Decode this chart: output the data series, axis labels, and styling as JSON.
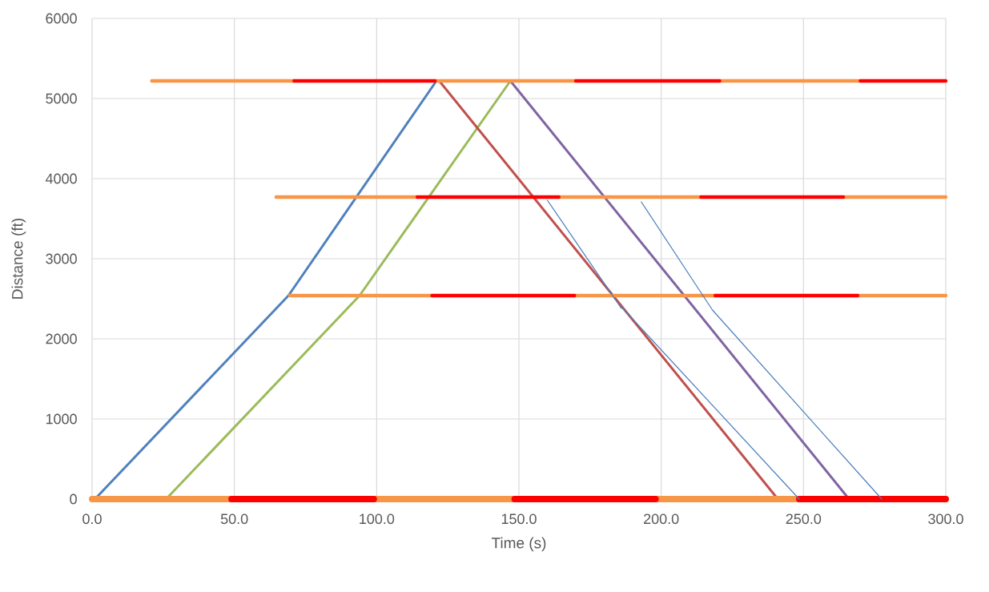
{
  "chart_data": {
    "type": "line",
    "xlabel": "Time (s)",
    "ylabel": "Distance (ft)",
    "xlim": [
      0,
      300
    ],
    "ylim": [
      0,
      6000
    ],
    "xticks": [
      {
        "value": 0,
        "label": "0.0"
      },
      {
        "value": 50,
        "label": "50.0"
      },
      {
        "value": 100,
        "label": "100.0"
      },
      {
        "value": 150,
        "label": "150.0"
      },
      {
        "value": 200,
        "label": "200.0"
      },
      {
        "value": 250,
        "label": "250.0"
      },
      {
        "value": 300,
        "label": "300.0"
      }
    ],
    "yticks": [
      0,
      1000,
      2000,
      3000,
      4000,
      5000,
      6000
    ],
    "grid": true,
    "marker": "none",
    "line_style": "solid",
    "series": [
      {
        "color": "#4f81bd",
        "x": [
          1,
          69,
          121
        ],
        "values": [
          0,
          2540,
          5220
        ]
      },
      {
        "color": "#9bbb59",
        "x": [
          26,
          94,
          147
        ],
        "values": [
          0,
          2540,
          5220
        ]
      },
      {
        "color": "#c0504d",
        "x": [
          122,
          241
        ],
        "values": [
          5220,
          0
        ]
      },
      {
        "color": "#8064a2",
        "x": [
          147,
          266
        ],
        "values": [
          5220,
          0
        ]
      },
      {
        "color": "#f79646",
        "x": [
          21,
          71,
          null,
          120.5,
          170,
          null,
          220.5,
          270,
          null,
          64.7,
          114.3,
          null,
          164,
          214,
          null,
          264,
          300,
          null,
          69.5,
          119.5,
          null,
          169.5,
          219,
          null,
          269,
          300
        ],
        "values": [
          5220,
          5220,
          null,
          5220,
          5220,
          null,
          5220,
          5220,
          null,
          3770,
          3770,
          null,
          3770,
          3770,
          null,
          3770,
          3770,
          null,
          2540,
          2540,
          null,
          2540,
          2540,
          null,
          2540,
          2540
        ]
      },
      {
        "color": "#ff0000",
        "x": [
          71,
          120.5,
          null,
          170,
          220.5,
          null,
          270,
          300,
          null,
          114.3,
          164,
          null,
          214,
          264,
          null,
          119.5,
          169.5,
          null,
          219,
          269
        ],
        "values": [
          5220,
          5220,
          null,
          5220,
          5220,
          null,
          5220,
          5220,
          null,
          3770,
          3770,
          null,
          3770,
          3770,
          null,
          2540,
          2540,
          null,
          2540,
          2540
        ]
      },
      {
        "color": "#f79646",
        "x": [
          0,
          49,
          null,
          99,
          148.5,
          null,
          198,
          248.5
        ],
        "values": [
          0,
          0,
          null,
          0,
          0,
          null,
          0,
          0
        ]
      },
      {
        "color": "#ff0000",
        "x": [
          49,
          99,
          null,
          148.5,
          198,
          null,
          248.5,
          300
        ],
        "values": [
          0,
          0,
          null,
          0,
          0,
          null,
          0,
          0
        ]
      },
      {
        "color": "#4a7ebb",
        "x": [
          160,
          186,
          186,
          248.5
        ],
        "values": [
          3730,
          2380,
          2400,
          0
        ]
      },
      {
        "color": "#4a7ebb",
        "x": [
          193,
          218,
          277.5
        ],
        "values": [
          3710,
          2360,
          0
        ]
      }
    ]
  }
}
